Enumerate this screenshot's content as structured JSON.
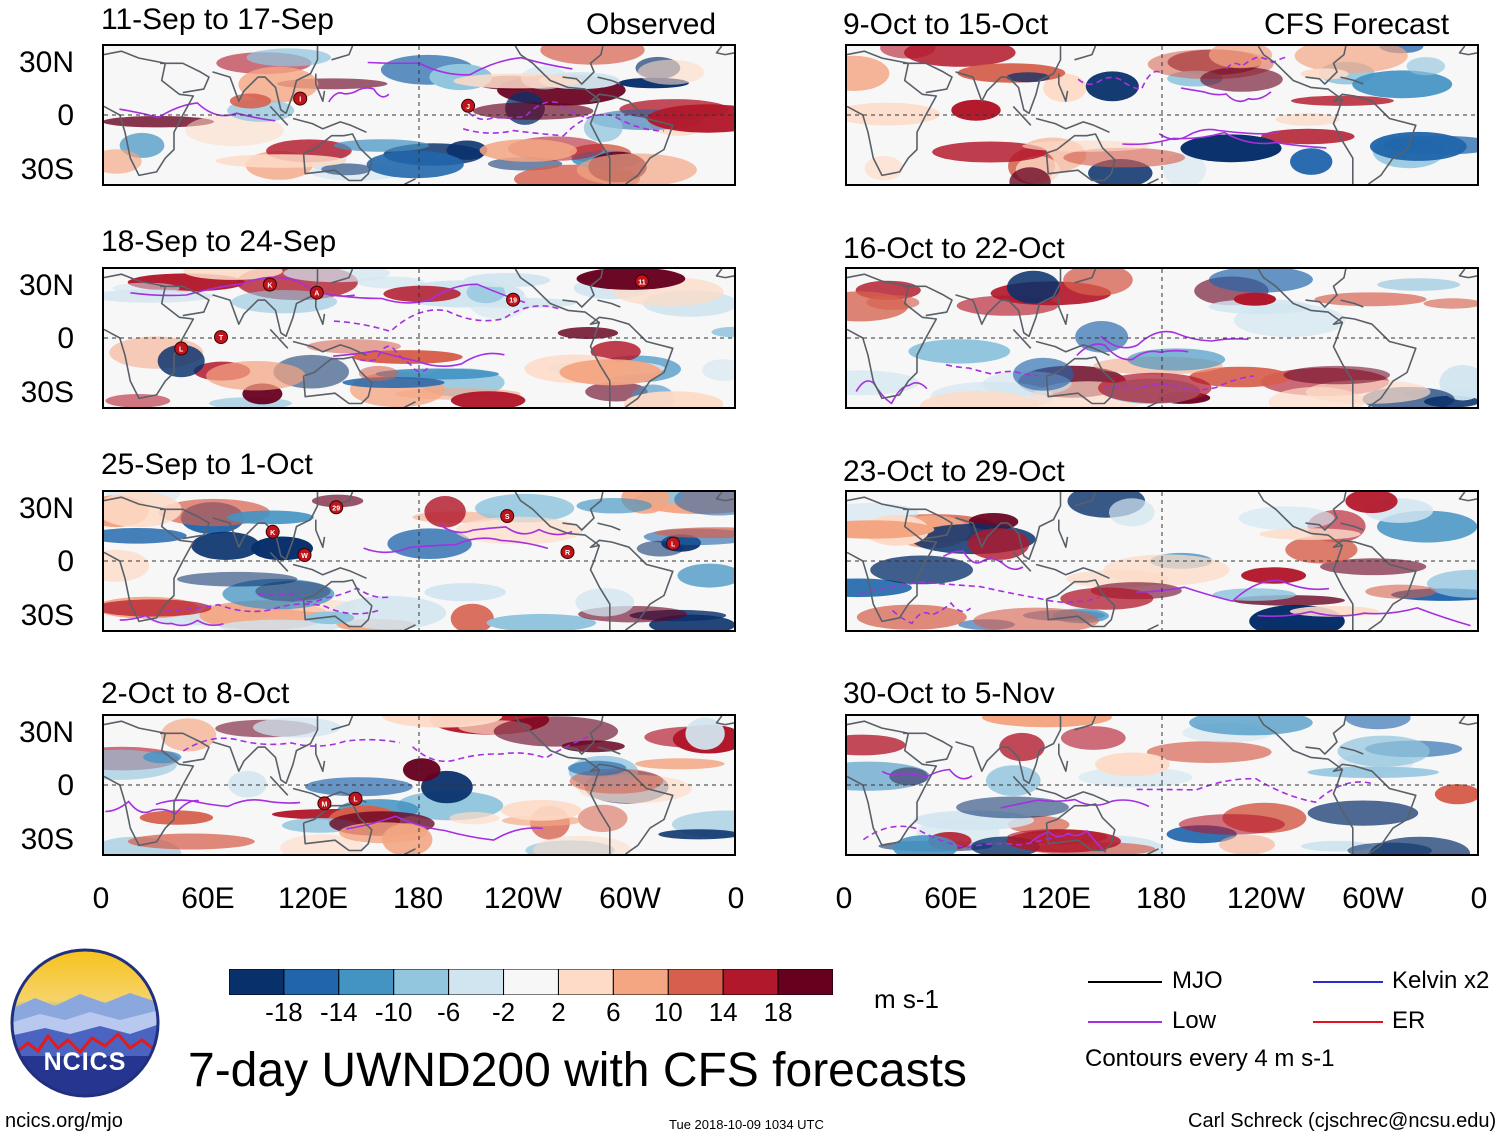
{
  "header": {
    "observed_label": "Observed",
    "forecast_label": "CFS Forecast"
  },
  "panels_observed": [
    {
      "title": "11-Sep to 17-Sep",
      "storms": [
        "I",
        "J"
      ]
    },
    {
      "title": "18-Sep to 24-Sep",
      "storms": [
        "A",
        "T",
        "19",
        "L",
        "11",
        "K"
      ]
    },
    {
      "title": "25-Sep to 1-Oct",
      "storms": [
        "29",
        "K",
        "L",
        "W",
        "R",
        "S"
      ]
    },
    {
      "title": "2-Oct to 8-Oct",
      "storms": [
        "L",
        "M"
      ]
    }
  ],
  "panels_forecast": [
    {
      "title": "9-Oct to 15-Oct"
    },
    {
      "title": "16-Oct to 22-Oct"
    },
    {
      "title": "23-Oct to 29-Oct"
    },
    {
      "title": "30-Oct to 5-Nov"
    }
  ],
  "lat_labels": [
    "30N",
    "0",
    "30S"
  ],
  "lon_labels": [
    "0",
    "60E",
    "120E",
    "180",
    "120W",
    "60W",
    "0"
  ],
  "colorbar": {
    "labels": [
      "-18",
      "-14",
      "-10",
      "-6",
      "-2",
      "2",
      "6",
      "10",
      "14",
      "18"
    ],
    "units": "m s-1",
    "colors": [
      "#08306b",
      "#2166ac",
      "#4393c3",
      "#92c5de",
      "#d1e5f0",
      "#f7f7f7",
      "#fddbc7",
      "#f4a582",
      "#d6604d",
      "#b2182b",
      "#67001f"
    ]
  },
  "legend": {
    "items": [
      {
        "label": "MJO",
        "color": "#000000"
      },
      {
        "label": "Kelvin x2",
        "color": "#2b2bd6"
      },
      {
        "label": "Low",
        "color": "#a530e0"
      },
      {
        "label": "ER",
        "color": "#e0141e"
      }
    ],
    "contour_note": "Contours every 4 m s-1"
  },
  "logo": {
    "text": "NCICS"
  },
  "footer": {
    "main_title": "7-day UWND200 with CFS forecasts",
    "url": "ncics.org/mjo",
    "timestamp": "Tue 2018-10-09 1034 UTC",
    "author": "Carl Schreck (cjschrec@ncsu.edu)"
  }
}
